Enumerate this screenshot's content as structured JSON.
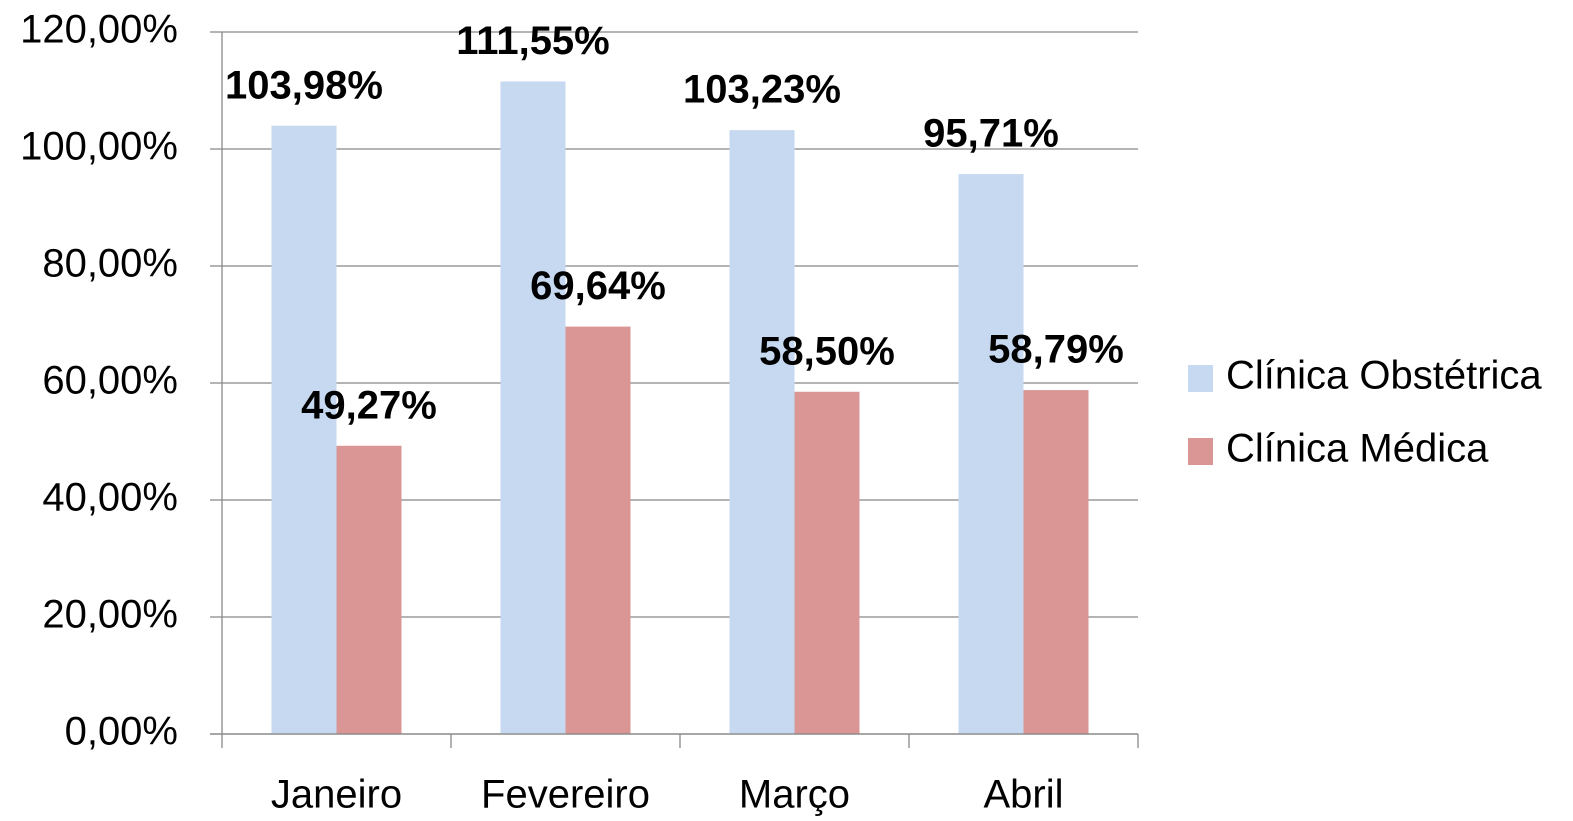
{
  "chart_data": {
    "type": "bar",
    "categories": [
      "Janeiro",
      "Fevereiro",
      "Março",
      "Abril"
    ],
    "series": [
      {
        "name": "Clínica Obstétrica",
        "color": "#c6d9f1",
        "values": [
          103.98,
          111.55,
          103.23,
          95.71
        ],
        "value_labels": [
          "103,98%",
          "111,55%",
          "103,23%",
          "95,71%"
        ]
      },
      {
        "name": "Clínica Médica",
        "color": "#d99694",
        "values": [
          49.27,
          69.64,
          58.5,
          58.79
        ],
        "value_labels": [
          "49,27%",
          "69,64%",
          "58,50%",
          "58,79%"
        ]
      }
    ],
    "ylim": [
      0,
      120
    ],
    "yticks": [
      {
        "value": 0,
        "label": "0,00%"
      },
      {
        "value": 20,
        "label": "20,00%"
      },
      {
        "value": 40,
        "label": "40,00%"
      },
      {
        "value": 60,
        "label": "60,00%"
      },
      {
        "value": 80,
        "label": "80,00%"
      },
      {
        "value": 100,
        "label": "100,00%"
      },
      {
        "value": 120,
        "label": "120,00%"
      }
    ],
    "grid": true,
    "legend": "right"
  }
}
